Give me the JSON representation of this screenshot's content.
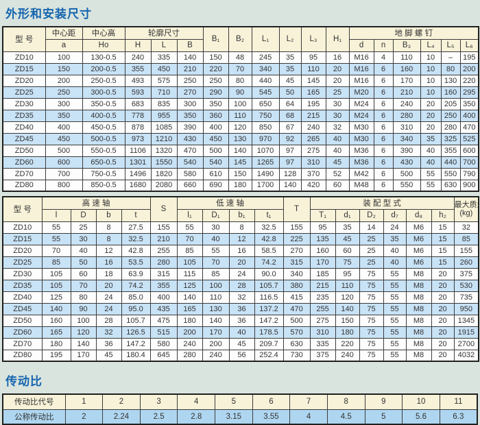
{
  "titles": {
    "dimensions": "外形和安装尺寸",
    "ratio": "传动比"
  },
  "colors": {
    "page_bg": "#d9e4de",
    "title_blue": "#1464ae",
    "header_bg": "#f7f2d8",
    "alt_row_blue": "#c8e2f6",
    "ratio_row_blue": "#afd6f0",
    "grid_line": "#3b3b3b",
    "text": "#333333"
  },
  "t1": {
    "row1": [
      "型  号",
      "中心距",
      "中心高",
      "轮廓尺寸",
      "B₁",
      "B₂",
      "L₁",
      "L₂",
      "L₃",
      "H₁",
      "地 脚 螺 钉"
    ],
    "row2": [
      "a",
      "Ho",
      "H",
      "L",
      "B",
      "d",
      "n",
      "B₃",
      "L₄",
      "L₅",
      "L₆"
    ],
    "rows": [
      [
        "ZD10",
        "100",
        "130-0.5",
        "240",
        "335",
        "140",
        "150",
        "48",
        "245",
        "35",
        "95",
        "16",
        "M16",
        "4",
        "110",
        "10",
        "–",
        "195"
      ],
      [
        "ZD15",
        "150",
        "200-0.5",
        "355",
        "450",
        "210",
        "220",
        "70",
        "340",
        "35",
        "110",
        "20",
        "M16",
        "6",
        "160",
        "10",
        "80",
        "200"
      ],
      [
        "ZD20",
        "200",
        "250-0.5",
        "493",
        "575",
        "250",
        "250",
        "80",
        "440",
        "45",
        "145",
        "20",
        "M16",
        "6",
        "170",
        "10",
        "130",
        "220"
      ],
      [
        "ZD25",
        "250",
        "300-0.5",
        "593",
        "710",
        "270",
        "290",
        "90",
        "545",
        "50",
        "165",
        "25",
        "M20",
        "6",
        "210",
        "10",
        "160",
        "295"
      ],
      [
        "ZD30",
        "300",
        "350-0.5",
        "683",
        "835",
        "300",
        "350",
        "100",
        "650",
        "64",
        "195",
        "30",
        "M24",
        "6",
        "240",
        "20",
        "205",
        "350"
      ],
      [
        "ZD35",
        "350",
        "400-0.5",
        "778",
        "955",
        "350",
        "360",
        "110",
        "750",
        "68",
        "215",
        "30",
        "M24",
        "6",
        "280",
        "20",
        "250",
        "400"
      ],
      [
        "ZD40",
        "400",
        "450-0.5",
        "878",
        "1085",
        "390",
        "400",
        "120",
        "850",
        "67",
        "240",
        "32",
        "M30",
        "6",
        "310",
        "20",
        "280",
        "470"
      ],
      [
        "ZD45",
        "450",
        "500-0.5",
        "973",
        "1210",
        "430",
        "450",
        "130",
        "970",
        "92",
        "265",
        "40",
        "M30",
        "6",
        "340",
        "35",
        "325",
        "525"
      ],
      [
        "ZD50",
        "500",
        "550-0.5",
        "1106",
        "1320",
        "470",
        "500",
        "140",
        "1070",
        "97",
        "275",
        "40",
        "M36",
        "6",
        "390",
        "40",
        "355",
        "600"
      ],
      [
        "ZD60",
        "600",
        "650-0.5",
        "1301",
        "1550",
        "540",
        "540",
        "145",
        "1265",
        "97",
        "310",
        "45",
        "M36",
        "6",
        "430",
        "40",
        "440",
        "700"
      ],
      [
        "ZD70",
        "700",
        "750-0.5",
        "1496",
        "1820",
        "580",
        "610",
        "150",
        "1490",
        "128",
        "370",
        "52",
        "M42",
        "6",
        "500",
        "55",
        "550",
        "790"
      ],
      [
        "ZD80",
        "800",
        "850-0.5",
        "1680",
        "2080",
        "660",
        "690",
        "180",
        "1700",
        "140",
        "420",
        "60",
        "M48",
        "6",
        "550",
        "55",
        "630",
        "900"
      ]
    ]
  },
  "t2": {
    "row1": [
      "型  号",
      "高  速  轴",
      "S",
      "低  速  轴",
      "T",
      "装 配 型 式"
    ],
    "mass_line1": "最大质量",
    "mass_line2": "(kg)",
    "row2": [
      "l",
      "D",
      "b",
      "t",
      "l₁",
      "D₁",
      "b₁",
      "t₁",
      "T₁",
      "d₁",
      "D₂",
      "d₇",
      "d₈",
      "h₂"
    ],
    "rows": [
      [
        "ZD10",
        "55",
        "25",
        "8",
        "27.5",
        "155",
        "55",
        "30",
        "8",
        "32.5",
        "155",
        "95",
        "35",
        "14",
        "24",
        "M6",
        "15",
        "32"
      ],
      [
        "ZD15",
        "55",
        "30",
        "8",
        "32.5",
        "210",
        "70",
        "40",
        "12",
        "42.8",
        "225",
        "135",
        "45",
        "25",
        "35",
        "M6",
        "15",
        "85"
      ],
      [
        "ZD20",
        "70",
        "40",
        "12",
        "42.8",
        "255",
        "85",
        "55",
        "16",
        "58.5",
        "270",
        "160",
        "60",
        "25",
        "40",
        "M6",
        "15",
        "155"
      ],
      [
        "ZD25",
        "85",
        "50",
        "16",
        "53.5",
        "280",
        "105",
        "70",
        "20",
        "74.2",
        "315",
        "170",
        "75",
        "25",
        "40",
        "M6",
        "15",
        "260"
      ],
      [
        "ZD30",
        "105",
        "60",
        "18",
        "63.9",
        "315",
        "115",
        "85",
        "24",
        "90.0",
        "340",
        "185",
        "95",
        "75",
        "55",
        "M8",
        "20",
        "375"
      ],
      [
        "ZD35",
        "105",
        "70",
        "20",
        "74.2",
        "355",
        "125",
        "100",
        "28",
        "105.7",
        "380",
        "215",
        "110",
        "75",
        "55",
        "M8",
        "20",
        "530"
      ],
      [
        "ZD40",
        "125",
        "80",
        "24",
        "85.0",
        "400",
        "140",
        "110",
        "32",
        "116.5",
        "415",
        "235",
        "120",
        "75",
        "55",
        "M8",
        "20",
        "735"
      ],
      [
        "ZD45",
        "140",
        "90",
        "24",
        "95.0",
        "435",
        "165",
        "130",
        "36",
        "137.2",
        "470",
        "255",
        "140",
        "75",
        "55",
        "M8",
        "20",
        "950"
      ],
      [
        "ZD50",
        "160",
        "100",
        "28",
        "105.7",
        "475",
        "180",
        "140",
        "36",
        "147.2",
        "500",
        "275",
        "150",
        "75",
        "55",
        "M8",
        "20",
        "1345"
      ],
      [
        "ZD60",
        "165",
        "120",
        "32",
        "126.5",
        "515",
        "200",
        "170",
        "40",
        "178.5",
        "570",
        "310",
        "180",
        "75",
        "55",
        "M8",
        "20",
        "1915"
      ],
      [
        "ZD70",
        "180",
        "140",
        "36",
        "147.2",
        "580",
        "240",
        "200",
        "45",
        "209.7",
        "630",
        "335",
        "220",
        "75",
        "55",
        "M8",
        "20",
        "2700"
      ],
      [
        "ZD80",
        "195",
        "170",
        "45",
        "180.4",
        "645",
        "280",
        "240",
        "56",
        "252.4",
        "730",
        "375",
        "240",
        "75",
        "55",
        "M8",
        "20",
        "4032"
      ]
    ]
  },
  "t3": {
    "rows": [
      [
        "传动比代号",
        "1",
        "2",
        "3",
        "4",
        "5",
        "6",
        "7",
        "8",
        "9",
        "10",
        "11"
      ],
      [
        "公称传动比",
        "2",
        "2.24",
        "2.5",
        "2.8",
        "3.15",
        "3.55",
        "4",
        "4.5",
        "5",
        "5.6",
        "6.3"
      ]
    ]
  }
}
